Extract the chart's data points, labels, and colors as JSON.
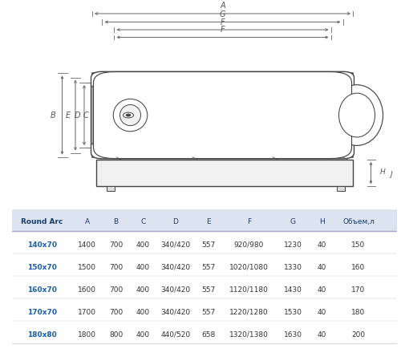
{
  "background_color": "#ffffff",
  "table": {
    "header": [
      "Round Arc",
      "A",
      "B",
      "C",
      "D",
      "E",
      "F",
      "G",
      "H",
      "Объем,л"
    ],
    "rows": [
      [
        "140x70",
        "1400",
        "700",
        "400",
        "340/420",
        "557",
        "920/980",
        "1230",
        "40",
        "150"
      ],
      [
        "150x70",
        "1500",
        "700",
        "400",
        "340/420",
        "557",
        "1020/1080",
        "1330",
        "40",
        "160"
      ],
      [
        "160x70",
        "1600",
        "700",
        "400",
        "340/420",
        "557",
        "1120/1180",
        "1430",
        "40",
        "170"
      ],
      [
        "170x70",
        "1700",
        "700",
        "400",
        "340/420",
        "557",
        "1220/1280",
        "1530",
        "40",
        "180"
      ],
      [
        "180x80",
        "1800",
        "800",
        "400",
        "440/520",
        "658",
        "1320/1380",
        "1630",
        "40",
        "200"
      ]
    ],
    "highlight_rows": [
      0,
      3
    ],
    "header_color": "#1a3a6e",
    "highlight_color": "#1a5fa8",
    "normal_color": "#333333",
    "line_color": "#aaaacc"
  },
  "dim_color": "#555555",
  "line_color": "#444444",
  "dim_line_color": "#666666"
}
